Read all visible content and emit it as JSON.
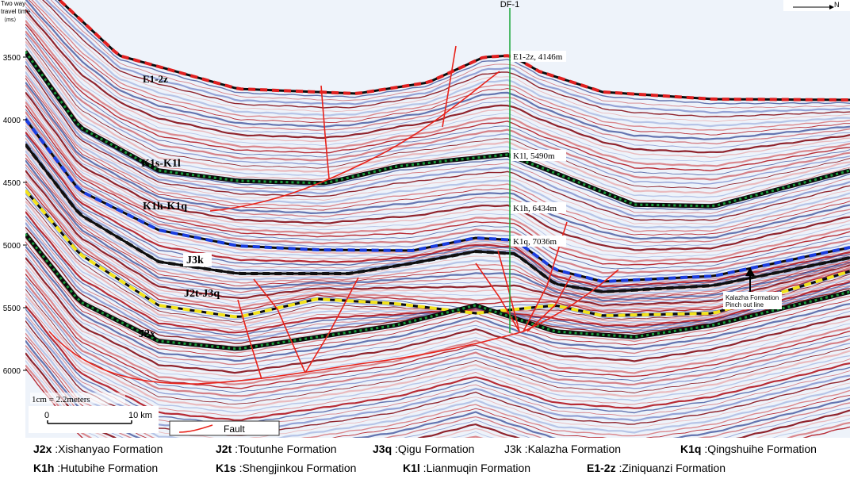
{
  "axis": {
    "title_line1": "Two way",
    "title_line2": "travel time",
    "title_line3": "（ms）",
    "ticks": [
      "3500",
      "4000",
      "4500",
      "5000",
      "5500",
      "6000"
    ]
  },
  "well": {
    "name": "DF-1"
  },
  "north_label": "N",
  "well_tops": [
    {
      "code": "E1-2z",
      "depth": "4146m"
    },
    {
      "code": "K1l",
      "depth": "5490m"
    },
    {
      "code": "K1h",
      "depth": "6434m"
    },
    {
      "code": "K1q",
      "depth": "7036m"
    }
  ],
  "horizon_labels": {
    "e": "E1-2z",
    "ks": "K1s-K1l",
    "kh": "K1h-K1q",
    "j3k": "J3k",
    "j2t": "J2t-J3q",
    "j2x": "J2x"
  },
  "annotation": {
    "line1": "Kalazha Formation",
    "line2": "Pinch out line"
  },
  "scale_text": "1cm = 2.2meters",
  "scale_bar": {
    "start": "0",
    "end": "10 km"
  },
  "fault_legend": "Fault",
  "colors": {
    "fault": "#e8221a",
    "e_horizon": "#e02020",
    "ks_horizon": "#1a9a3a",
    "kh_horizon": "#1a3ee0",
    "j3k_horizon": "#111111",
    "j2t_horizon": "#f2e21a",
    "well_line": "#1aa83a"
  },
  "formations": [
    {
      "code": "J2x",
      "sep": " :",
      "name": "Xishanyao Formation"
    },
    {
      "code": "J2t",
      "sep": " :",
      "name": "Toutunhe Formation"
    },
    {
      "code": "J3q",
      "sep": " :",
      "name": "Qigu Formation"
    },
    {
      "code": "J3k",
      "sep": " :",
      "name": "Kalazha Formation"
    },
    {
      "code": "K1q",
      "sep": " :",
      "name": "Qingshuihe Formation"
    },
    {
      "code": "K1h",
      "sep": " :",
      "name": "Hutubihe Formation"
    },
    {
      "code": "K1s",
      "sep": " :",
      "name": "Shengjinkou Formation"
    },
    {
      "code": "K1l",
      "sep": " :",
      "name": "Lianmuqin Formation"
    },
    {
      "code": "E1-2z",
      "sep": " :",
      "name": "Ziniquanzi Formation"
    }
  ]
}
